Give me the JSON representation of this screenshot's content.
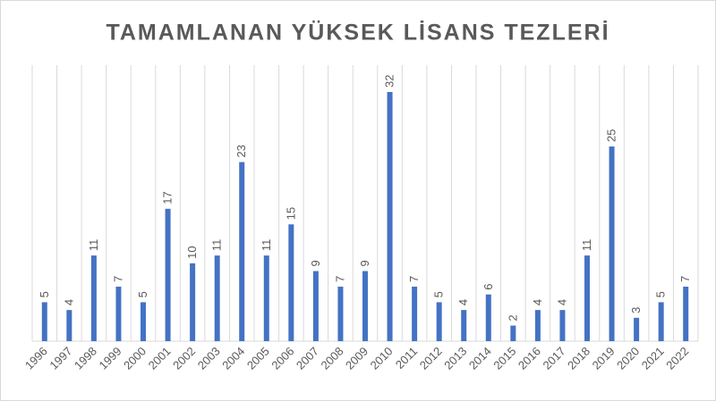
{
  "chart_data": {
    "type": "bar",
    "title": "TAMAMLANAN YÜKSEK LİSANS TEZLERİ",
    "categories": [
      "1996",
      "1997",
      "1998",
      "1999",
      "2000",
      "2001",
      "2002",
      "2003",
      "2004",
      "2005",
      "2006",
      "2007",
      "2008",
      "2009",
      "2010",
      "2011",
      "2012",
      "2013",
      "2014",
      "2015",
      "2016",
      "2017",
      "2018",
      "2019",
      "2020",
      "2021",
      "2022"
    ],
    "values": [
      5,
      4,
      11,
      7,
      5,
      17,
      10,
      11,
      23,
      11,
      15,
      9,
      7,
      9,
      32,
      7,
      5,
      4,
      6,
      2,
      4,
      4,
      11,
      25,
      3,
      5,
      7
    ],
    "color": "#4472c4",
    "grid": true
  }
}
